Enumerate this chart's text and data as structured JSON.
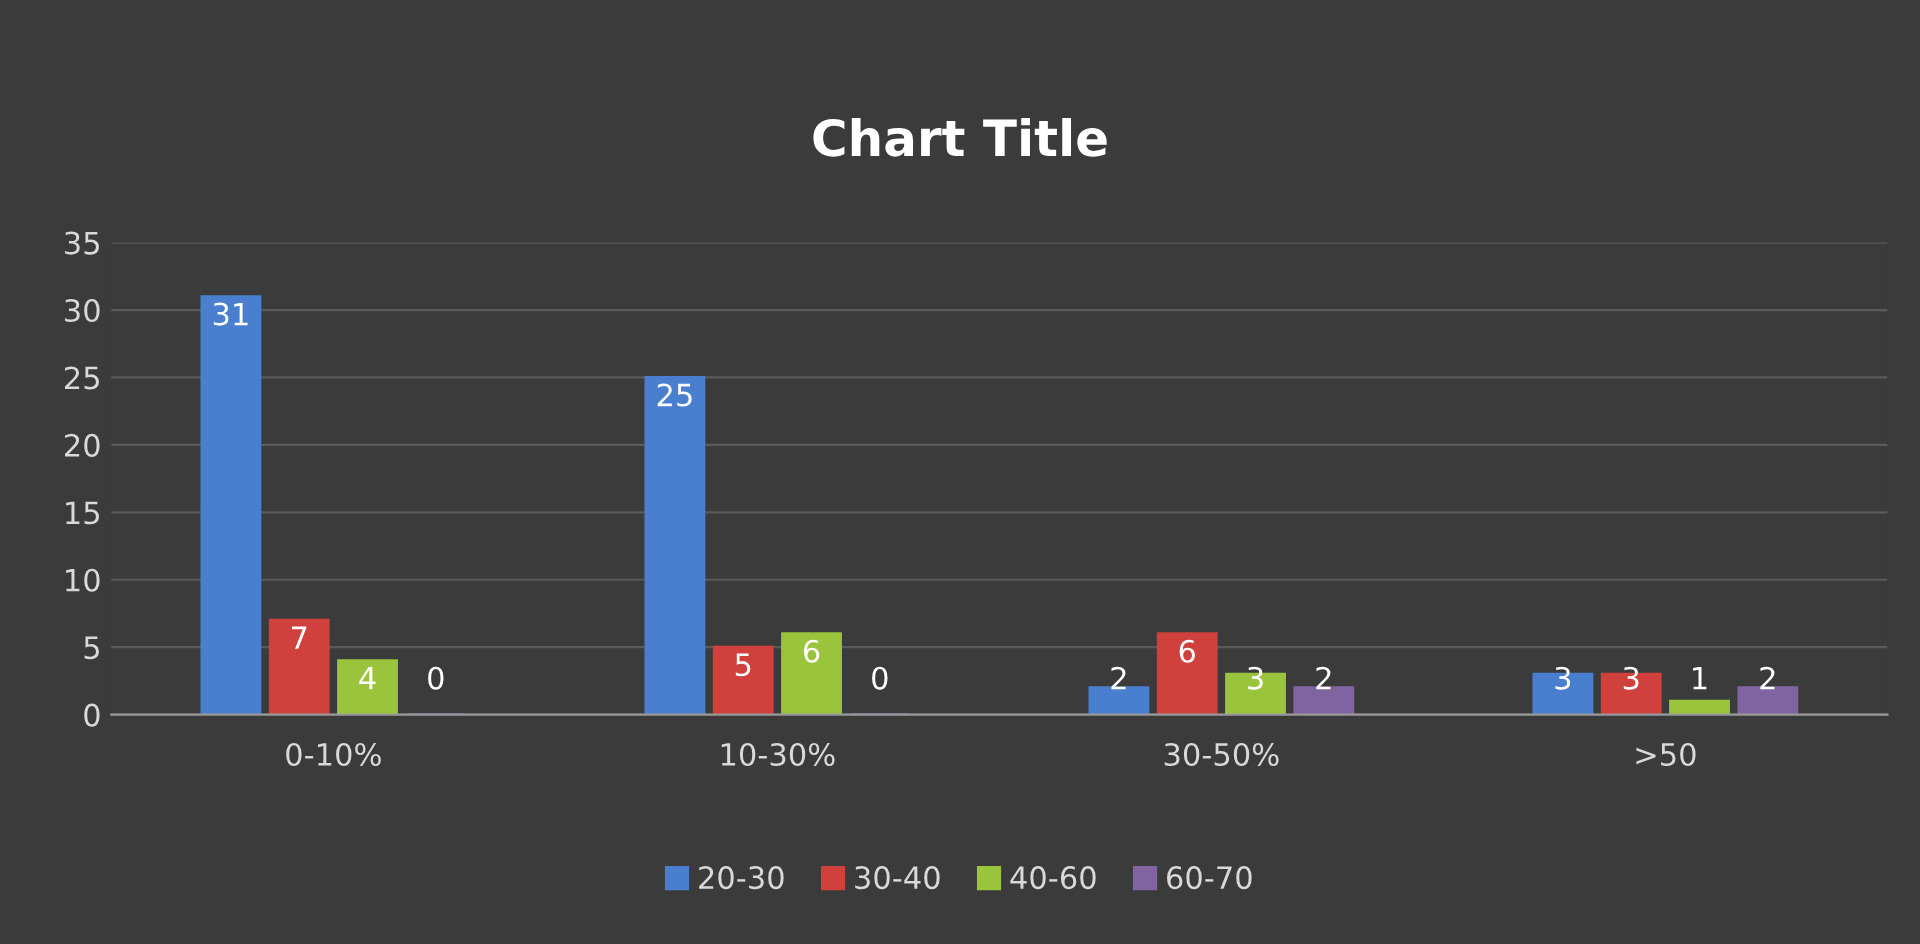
{
  "chart_data": {
    "type": "bar",
    "title": "Chart Title",
    "categories": [
      "0-10%",
      "10-30%",
      "30-50%",
      ">50"
    ],
    "series": [
      {
        "name": "20-30",
        "color": "#4a7fd0",
        "values": [
          31,
          25,
          2,
          3
        ]
      },
      {
        "name": "30-40",
        "color": "#d0413d",
        "values": [
          7,
          5,
          6,
          3
        ]
      },
      {
        "name": "40-60",
        "color": "#9bc43d",
        "values": [
          4,
          6,
          3,
          1
        ]
      },
      {
        "name": "60-70",
        "color": "#8064a2",
        "values": [
          0,
          0,
          2,
          2
        ]
      }
    ],
    "ylim": [
      0,
      35
    ],
    "yticks": [
      0,
      5,
      10,
      15,
      20,
      25,
      30,
      35
    ],
    "grid": "y",
    "legend": "bottom",
    "data_labels": true
  }
}
